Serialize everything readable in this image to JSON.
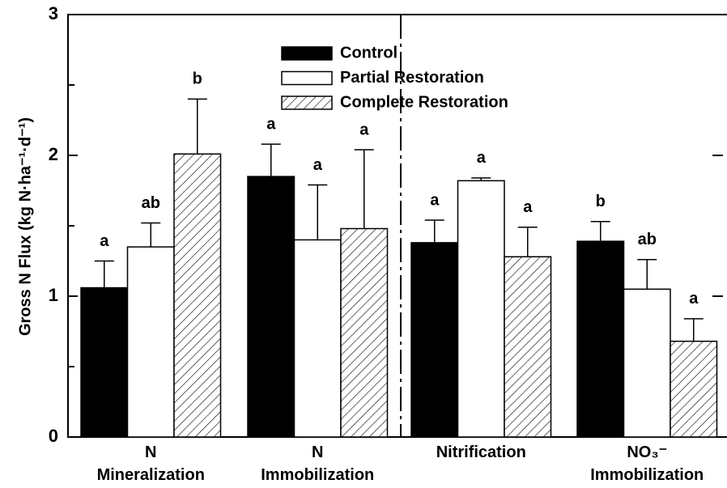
{
  "chart_data": {
    "type": "bar",
    "y_label": "Gross N Flux (kg N·ha⁻¹·d⁻¹)",
    "categories": [
      "N Mineralization",
      "N Immobilization",
      "Nitrification",
      "NO₃⁻ Immobilization"
    ],
    "series": [
      {
        "name": "Control",
        "color": "#000000",
        "values": [
          1.06,
          1.85,
          1.38,
          1.39
        ],
        "errors": [
          0.19,
          0.23,
          0.16,
          0.14
        ],
        "letters": [
          "a",
          "a",
          "a",
          "b"
        ]
      },
      {
        "name": "Partial Restoration",
        "color": "#ffffff",
        "values": [
          1.35,
          1.4,
          1.82,
          1.05
        ],
        "errors": [
          0.17,
          0.39,
          0.02,
          0.21
        ],
        "letters": [
          "ab",
          "a",
          "a",
          "ab"
        ]
      },
      {
        "name": "Complete Restoration",
        "color": "hatched",
        "values": [
          2.01,
          1.48,
          1.28,
          0.68
        ],
        "errors": [
          0.39,
          0.56,
          0.21,
          0.16
        ],
        "letters": [
          "b",
          "a",
          "a",
          "a"
        ]
      }
    ],
    "ylim": [
      0,
      3
    ],
    "yticks": [
      0,
      1,
      2,
      3
    ],
    "minor_yticks": [
      0.5,
      1.5,
      2.5
    ]
  }
}
